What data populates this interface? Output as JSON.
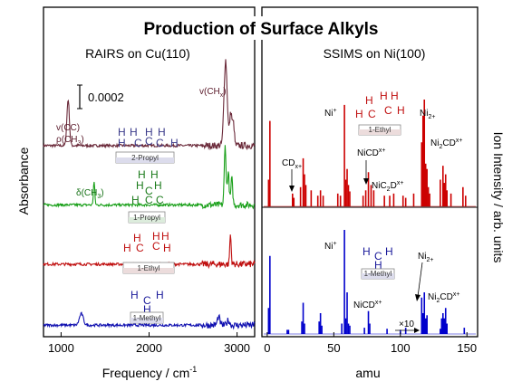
{
  "title": "Production of Surface Alkyls",
  "chart_data": [
    {
      "type": "line",
      "subtitle": "RAIRS on Cu(110)",
      "xlabel": "Frequency / cm",
      "xlabel_sup": "-1",
      "ylabel": "Absorbance",
      "xlim": [
        800,
        3200
      ],
      "x_ticks": [
        1000,
        2000,
        3000
      ],
      "scale_bar_label": "0.0002",
      "series": [
        {
          "name": "2-Propyl",
          "color": "#6b2a3a",
          "baseline": 0.58,
          "peaks": [
            {
              "x": 1080,
              "h": 0.14,
              "w": 14
            },
            {
              "x": 2870,
              "h": 0.26,
              "w": 18
            },
            {
              "x": 2930,
              "h": 0.1,
              "w": 14
            },
            {
              "x": 2960,
              "h": 0.06,
              "w": 10
            }
          ]
        },
        {
          "name": "1-Propyl",
          "color": "#1aa01a",
          "baseline": 0.4,
          "peaks": [
            {
              "x": 1375,
              "h": 0.07,
              "w": 8
            },
            {
              "x": 2865,
              "h": 0.18,
              "w": 10
            },
            {
              "x": 2900,
              "h": 0.1,
              "w": 10
            },
            {
              "x": 2940,
              "h": 0.08,
              "w": 10
            }
          ]
        },
        {
          "name": "1-Ethyl",
          "color": "#c01010",
          "baseline": 0.22,
          "peaks": [
            {
              "x": 2925,
              "h": 0.09,
              "w": 8
            }
          ]
        },
        {
          "name": "1-Methyl",
          "color": "#1010b0",
          "baseline": 0.035,
          "peaks": [
            {
              "x": 1230,
              "h": 0.035,
              "w": 22
            },
            {
              "x": 2790,
              "h": 0.025,
              "w": 14
            },
            {
              "x": 2900,
              "h": 0.015,
              "w": 14
            }
          ]
        }
      ],
      "annotations": [
        "v(CC)",
        "ρ(CH3)",
        "v(CHx)",
        "δ(CH3)"
      ]
    },
    {
      "type": "bar",
      "subtitle": "SSIMS on Ni(100)",
      "xlabel": "amu",
      "ylabel": "Ion Intensity / arb. units",
      "xlim": [
        -4,
        158
      ],
      "x_ticks": [
        0,
        50,
        100,
        150
      ],
      "series": [
        {
          "name": "1-Ethyl",
          "color": "#cc0000",
          "peaks": [
            [
              1,
              0.25
            ],
            [
              2,
              0.8
            ],
            [
              19,
              0.12
            ],
            [
              20,
              0.08
            ],
            [
              25,
              0.18
            ],
            [
              27,
              0.45
            ],
            [
              28,
              0.3
            ],
            [
              29,
              0.2
            ],
            [
              33,
              0.15
            ],
            [
              38,
              0.1
            ],
            [
              40,
              0.15
            ],
            [
              42,
              0.1
            ],
            [
              53,
              0.12
            ],
            [
              55,
              0.1
            ],
            [
              58,
              0.95
            ],
            [
              59,
              0.25
            ],
            [
              60,
              0.35
            ],
            [
              61,
              0.2
            ],
            [
              62,
              0.14
            ],
            [
              72,
              0.1
            ],
            [
              74,
              0.15
            ],
            [
              76,
              0.32
            ],
            [
              78,
              0.2
            ],
            [
              80,
              0.15
            ],
            [
              88,
              0.1
            ],
            [
              92,
              0.1
            ],
            [
              95,
              0.12
            ],
            [
              102,
              0.1
            ],
            [
              104,
              0.08
            ],
            [
              110,
              0.12
            ],
            [
              116,
              0.6
            ],
            [
              117,
              0.85
            ],
            [
              118,
              1.0
            ],
            [
              119,
              0.4
            ],
            [
              120,
              0.35
            ],
            [
              121,
              0.18
            ],
            [
              122,
              0.12
            ],
            [
              130,
              0.25
            ],
            [
              132,
              0.38
            ],
            [
              133,
              0.22
            ],
            [
              134,
              0.3
            ],
            [
              135,
              0.15
            ],
            [
              138,
              0.12
            ],
            [
              147,
              0.18
            ],
            [
              149,
              0.1
            ]
          ]
        },
        {
          "name": "1-Methyl",
          "color": "#0000cc",
          "peaks": [
            [
              1,
              0.25
            ],
            [
              2,
              0.75
            ],
            [
              15,
              0.04
            ],
            [
              16,
              0.04
            ],
            [
              26,
              0.12
            ],
            [
              27,
              0.3
            ],
            [
              28,
              0.1
            ],
            [
              39,
              0.12
            ],
            [
              40,
              0.2
            ],
            [
              41,
              0.08
            ],
            [
              56,
              0.1
            ],
            [
              58,
              1.0
            ],
            [
              59,
              0.15
            ],
            [
              60,
              0.4
            ],
            [
              61,
              0.1
            ],
            [
              62,
              0.08
            ],
            [
              73,
              0.06
            ],
            [
              76,
              0.22
            ],
            [
              77,
              0.1
            ],
            [
              90,
              0.05
            ],
            [
              100,
              0.04
            ],
            [
              104,
              0.06
            ],
            [
              116,
              0.35
            ],
            [
              117,
              0.2
            ],
            [
              118,
              0.4
            ],
            [
              119,
              0.15
            ],
            [
              120,
              0.18
            ],
            [
              130,
              0.05
            ],
            [
              131,
              0.15
            ],
            [
              132,
              0.2
            ],
            [
              133,
              0.15
            ],
            [
              134,
              0.25
            ],
            [
              135,
              0.1
            ],
            [
              148,
              0.06
            ]
          ]
        }
      ],
      "zoom_label": "×10"
    }
  ],
  "labels": {
    "vcc": "v(CC)",
    "rho": "ρ(CH",
    "vchx": "v(CH",
    "delta": "δ(CH",
    "ni": "Ni",
    "ni2": "Ni",
    "cdx": "CD",
    "nicdx": "NiCD",
    "ni2cdx": "Ni",
    "nicd2": "NiC",
    "two_propyl": "2-Propyl",
    "one_propyl": "1-Propyl",
    "one_ethyl": "1-Ethyl",
    "one_methyl": "1-Methyl"
  }
}
